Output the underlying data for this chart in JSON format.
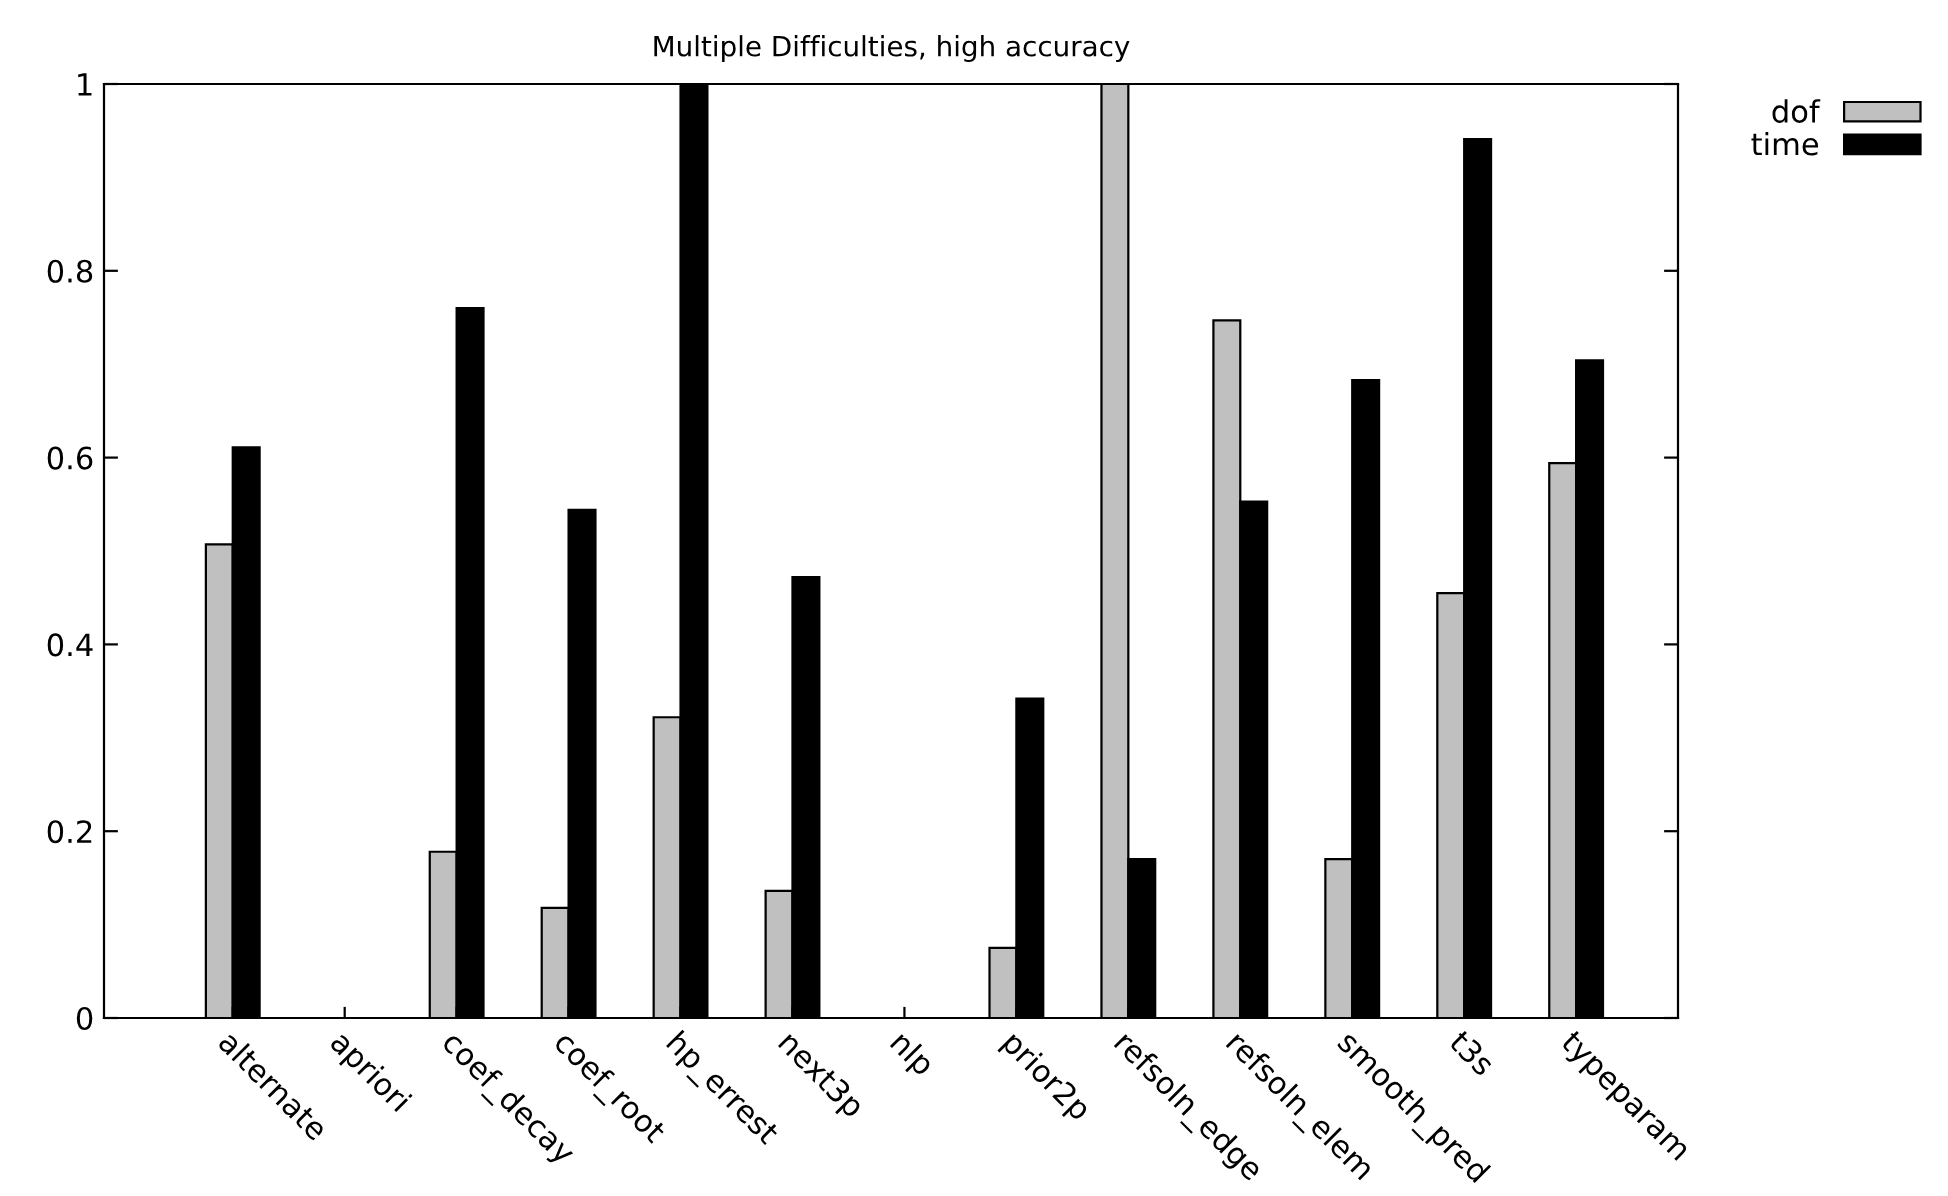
{
  "chart_data": {
    "type": "bar",
    "title": "Multiple Difficulties, high accuracy",
    "categories": [
      "alternate",
      "apriori",
      "coef_decay",
      "coef_root",
      "hp_errest",
      "next3p",
      "nlp",
      "prior2p",
      "refsoln_edge",
      "refsoln_elem",
      "smooth_pred",
      "t3s",
      "typeparam"
    ],
    "series": [
      {
        "name": "dof",
        "color": "#c0c0c0",
        "values": [
          0.507,
          0,
          0.178,
          0.118,
          0.322,
          0.136,
          0,
          0.075,
          1.0,
          0.747,
          0.17,
          0.455,
          0.594
        ]
      },
      {
        "name": "time",
        "color": "#000000",
        "values": [
          0.611,
          0,
          0.76,
          0.544,
          1.0,
          0.472,
          0,
          0.342,
          0.17,
          0.553,
          0.683,
          0.941,
          0.704
        ]
      }
    ],
    "ylim": [
      0,
      1
    ],
    "yticks": [
      0,
      0.2,
      0.4,
      0.6,
      0.8,
      1
    ],
    "grid": false,
    "legend": "top right"
  }
}
